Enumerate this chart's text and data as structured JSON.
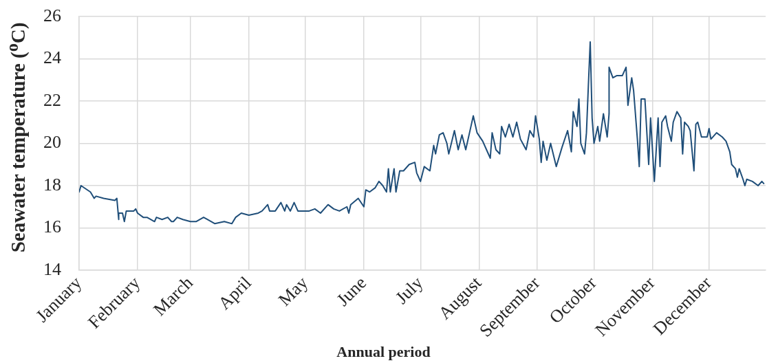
{
  "chart_data": {
    "type": "line",
    "xlabel": "Annual period",
    "ylabel": "Seawater temperature ($^{o}$C)",
    "color": "#1f4e79",
    "line_style": "solid",
    "grid": true,
    "xlim": [
      "--01-01",
      "--12-31"
    ],
    "xticks": [
      {
        "value": "--01-01",
        "label": "January"
      },
      {
        "value": "--02-01",
        "label": "February"
      },
      {
        "value": "--03-01",
        "label": "March"
      },
      {
        "value": "--04-01",
        "label": "April"
      },
      {
        "value": "--05-01",
        "label": "May"
      },
      {
        "value": "--06-01",
        "label": "June"
      },
      {
        "value": "--07-01",
        "label": "July"
      },
      {
        "value": "--08-01",
        "label": "August"
      },
      {
        "value": "--09-01",
        "label": "September"
      },
      {
        "value": "--10-01",
        "label": "October"
      },
      {
        "value": "--11-01",
        "label": "November"
      },
      {
        "value": "--12-01",
        "label": "December"
      }
    ],
    "ylim": [
      14,
      26
    ],
    "yticks": [
      14,
      16,
      18,
      20,
      22,
      24,
      26
    ],
    "x": [
      "--01-01",
      "--01-02",
      "--01-07",
      "--01-09",
      "--01-10",
      "--01-14",
      "--01-20",
      "--01-21",
      "--01-22",
      "--01-22",
      "--01-24",
      "--01-25",
      "--01-26",
      "--01-30",
      "--01-31",
      "--02-01",
      "--02-04",
      "--02-06",
      "--02-10",
      "--02-11",
      "--02-14",
      "--02-17",
      "--02-19",
      "--02-20",
      "--02-22",
      "--02-25",
      "--03-01",
      "--03-04",
      "--03-08",
      "--03-10",
      "--03-14",
      "--03-19",
      "--03-23",
      "--03-25",
      "--03-28",
      "--04-01",
      "--04-06",
      "--04-08",
      "--04-11",
      "--04-12",
      "--04-15",
      "--04-18",
      "--04-20",
      "--04-21",
      "--04-23",
      "--04-25",
      "--04-27",
      "--04-30",
      "--05-03",
      "--05-06",
      "--05-09",
      "--05-13",
      "--05-16",
      "--05-19",
      "--05-23",
      "--05-24",
      "--05-25",
      "--05-29",
      "--06-01",
      "--06-02",
      "--06-04",
      "--06-07",
      "--06-09",
      "--06-11",
      "--06-13",
      "--06-14",
      "--06-15",
      "--06-17",
      "--06-18",
      "--06-20",
      "--06-22",
      "--06-25",
      "--06-28",
      "--06-29",
      "--07-01",
      "--07-03",
      "--07-06",
      "--07-08",
      "--07-09",
      "--07-11",
      "--07-13",
      "--07-15",
      "--07-16",
      "--07-19",
      "--07-21",
      "--07-23",
      "--07-25",
      "--07-27",
      "--07-29",
      "--07-31",
      "--08-03",
      "--08-05",
      "--08-07",
      "--08-08",
      "--08-10",
      "--08-12",
      "--08-13",
      "--08-15",
      "--08-17",
      "--08-19",
      "--08-21",
      "--08-23",
      "--08-26",
      "--08-28",
      "--08-30",
      "--08-31",
      "--09-02",
      "--09-03",
      "--09-04",
      "--09-06",
      "--09-08",
      "--09-11",
      "--09-14",
      "--09-17",
      "--09-19",
      "--09-20",
      "--09-22",
      "--09-23",
      "--09-24",
      "--09-26",
      "--09-27",
      "--09-28",
      "--09-29",
      "--09-30",
      "--10-01",
      "--10-03",
      "--10-04",
      "--10-06",
      "--10-08",
      "--10-09",
      "--10-09",
      "--10-11",
      "--10-13",
      "--10-16",
      "--10-18",
      "--10-19",
      "--10-21",
      "--10-22",
      "--10-24",
      "--10-25",
      "--10-26",
      "--10-28",
      "--10-30",
      "--10-31",
      "--11-02",
      "--11-04",
      "--11-05",
      "--11-06",
      "--11-08",
      "--11-09",
      "--11-11",
      "--11-12",
      "--11-14",
      "--11-16",
      "--11-17",
      "--11-18",
      "--11-20",
      "--11-21",
      "--11-23",
      "--11-24",
      "--11-25",
      "--11-27",
      "--11-30",
      "--12-01",
      "--12-02",
      "--12-05",
      "--12-08",
      "--12-10",
      "--12-12",
      "--12-13",
      "--12-15",
      "--12-16",
      "--12-17",
      "--12-19",
      "--12-20",
      "--12-21",
      "--12-24",
      "--12-27",
      "--12-29",
      "--12-30"
    ],
    "values": [
      17.7,
      18.0,
      17.7,
      17.4,
      17.5,
      17.4,
      17.3,
      17.4,
      16.4,
      16.7,
      16.7,
      16.3,
      16.8,
      16.8,
      16.9,
      16.7,
      16.5,
      16.5,
      16.3,
      16.5,
      16.4,
      16.5,
      16.3,
      16.3,
      16.5,
      16.4,
      16.3,
      16.3,
      16.5,
      16.4,
      16.2,
      16.3,
      16.2,
      16.5,
      16.7,
      16.6,
      16.7,
      16.8,
      17.1,
      16.8,
      16.8,
      17.2,
      16.8,
      17.1,
      16.8,
      17.2,
      16.8,
      16.8,
      16.8,
      16.9,
      16.7,
      17.1,
      16.9,
      16.8,
      17.0,
      16.7,
      17.1,
      17.4,
      17.0,
      17.8,
      17.7,
      17.9,
      18.2,
      18.0,
      17.7,
      18.8,
      17.7,
      18.8,
      17.7,
      18.7,
      18.7,
      19.0,
      19.1,
      18.6,
      18.2,
      18.9,
      18.7,
      19.9,
      19.5,
      20.4,
      20.5,
      20.0,
      19.5,
      20.6,
      19.7,
      20.4,
      19.7,
      20.5,
      21.3,
      20.5,
      20.1,
      19.7,
      19.3,
      20.5,
      19.7,
      19.5,
      20.8,
      20.3,
      20.9,
      20.3,
      21.0,
      20.2,
      19.7,
      20.6,
      20.3,
      21.3,
      20.2,
      19.1,
      20.1,
      19.2,
      20.0,
      18.9,
      19.8,
      20.6,
      19.6,
      21.5,
      20.8,
      22.1,
      20.0,
      19.5,
      20.5,
      22.7,
      24.8,
      21.2,
      20.0,
      20.8,
      20.1,
      21.4,
      20.3,
      21.4,
      23.6,
      23.1,
      23.2,
      23.2,
      23.6,
      21.8,
      23.1,
      22.5,
      20.2,
      18.9,
      22.1,
      22.1,
      19.0,
      21.2,
      18.2,
      21.2,
      18.9,
      21.0,
      21.3,
      20.8,
      20.1,
      21.0,
      21.5,
      21.2,
      19.5,
      21.0,
      20.8,
      20.6,
      18.7,
      20.9,
      21.0,
      20.3,
      20.3,
      20.7,
      20.2,
      20.5,
      20.3,
      20.1,
      19.6,
      19.0,
      18.8,
      18.4,
      18.8,
      18.3,
      18.0,
      18.3,
      18.2,
      18.0,
      18.2,
      18.1
    ]
  }
}
